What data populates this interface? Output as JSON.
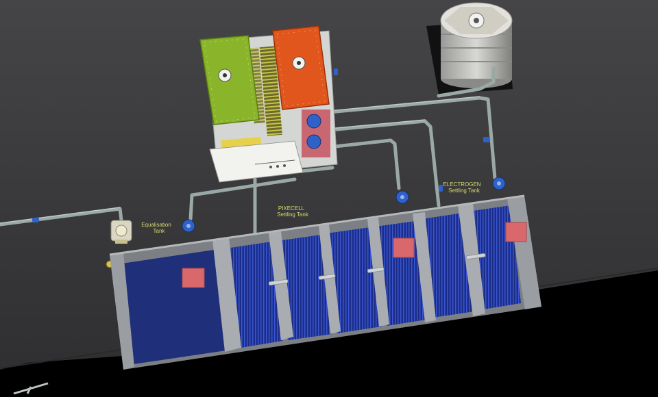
{
  "labels": {
    "equalisation": [
      "Equalisation",
      "Tank"
    ],
    "pixecell": [
      "PIXECELL",
      "Settling Tank"
    ],
    "electrogen": [
      "ELECTROGEN",
      "Settling Tank"
    ]
  },
  "colors": {
    "wall": "#3a3a3c",
    "floor": "#000000",
    "tank_gray": "#8c8f93",
    "water_blue": "#1a2f8a",
    "unit_green": "#8ab52a",
    "unit_orange": "#e0561c",
    "pipe": "#9aa8a6",
    "pump_blue": "#2f62c8",
    "label_text": "#d6d96a",
    "marker_red": "#d9686c"
  }
}
